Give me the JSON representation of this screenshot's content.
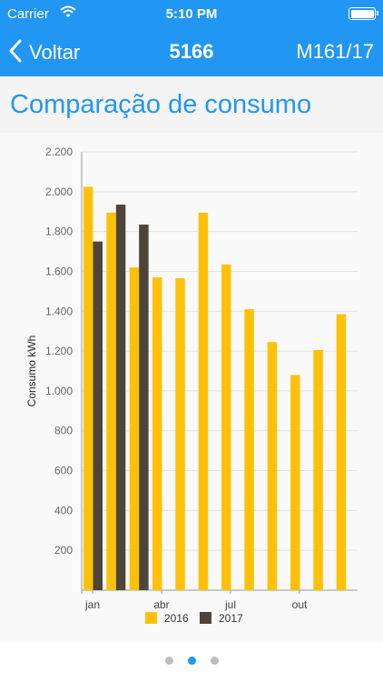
{
  "status_bar": {
    "carrier": "Carrier",
    "time": "5:10 PM"
  },
  "nav": {
    "back_label": "Voltar",
    "title": "5166",
    "right_label": "M161/17"
  },
  "header": {
    "title": "Comparação de consumo"
  },
  "colors": {
    "bar_2016": "#ffc107",
    "bar_2017": "#4e4539",
    "accent": "#2196f3"
  },
  "pager": {
    "count": 3,
    "active_index": 1
  },
  "chart_data": {
    "type": "bar",
    "ylabel": "Consumo kWh",
    "xlabel": "",
    "ylim": [
      0,
      2200
    ],
    "yticks": [
      "200",
      "400",
      "600",
      "800",
      "1.000",
      "1.200",
      "1.400",
      "1.600",
      "1.800",
      "2.000",
      "2.200"
    ],
    "x_tick_labels": [
      {
        "label": "jan",
        "month_index": 0
      },
      {
        "label": "abr",
        "month_index": 3
      },
      {
        "label": "jul",
        "month_index": 6
      },
      {
        "label": "out",
        "month_index": 9
      }
    ],
    "months": 12,
    "series": [
      {
        "name": "2016",
        "values": [
          2025,
          1895,
          1620,
          1570,
          1565,
          1895,
          1635,
          1410,
          1245,
          1080,
          1205,
          1385
        ]
      },
      {
        "name": "2017",
        "values": [
          1750,
          1935,
          1835,
          null,
          null,
          null,
          null,
          null,
          null,
          null,
          null,
          null
        ]
      }
    ],
    "legend": [
      "2016",
      "2017"
    ],
    "legend_position": "bottom"
  }
}
